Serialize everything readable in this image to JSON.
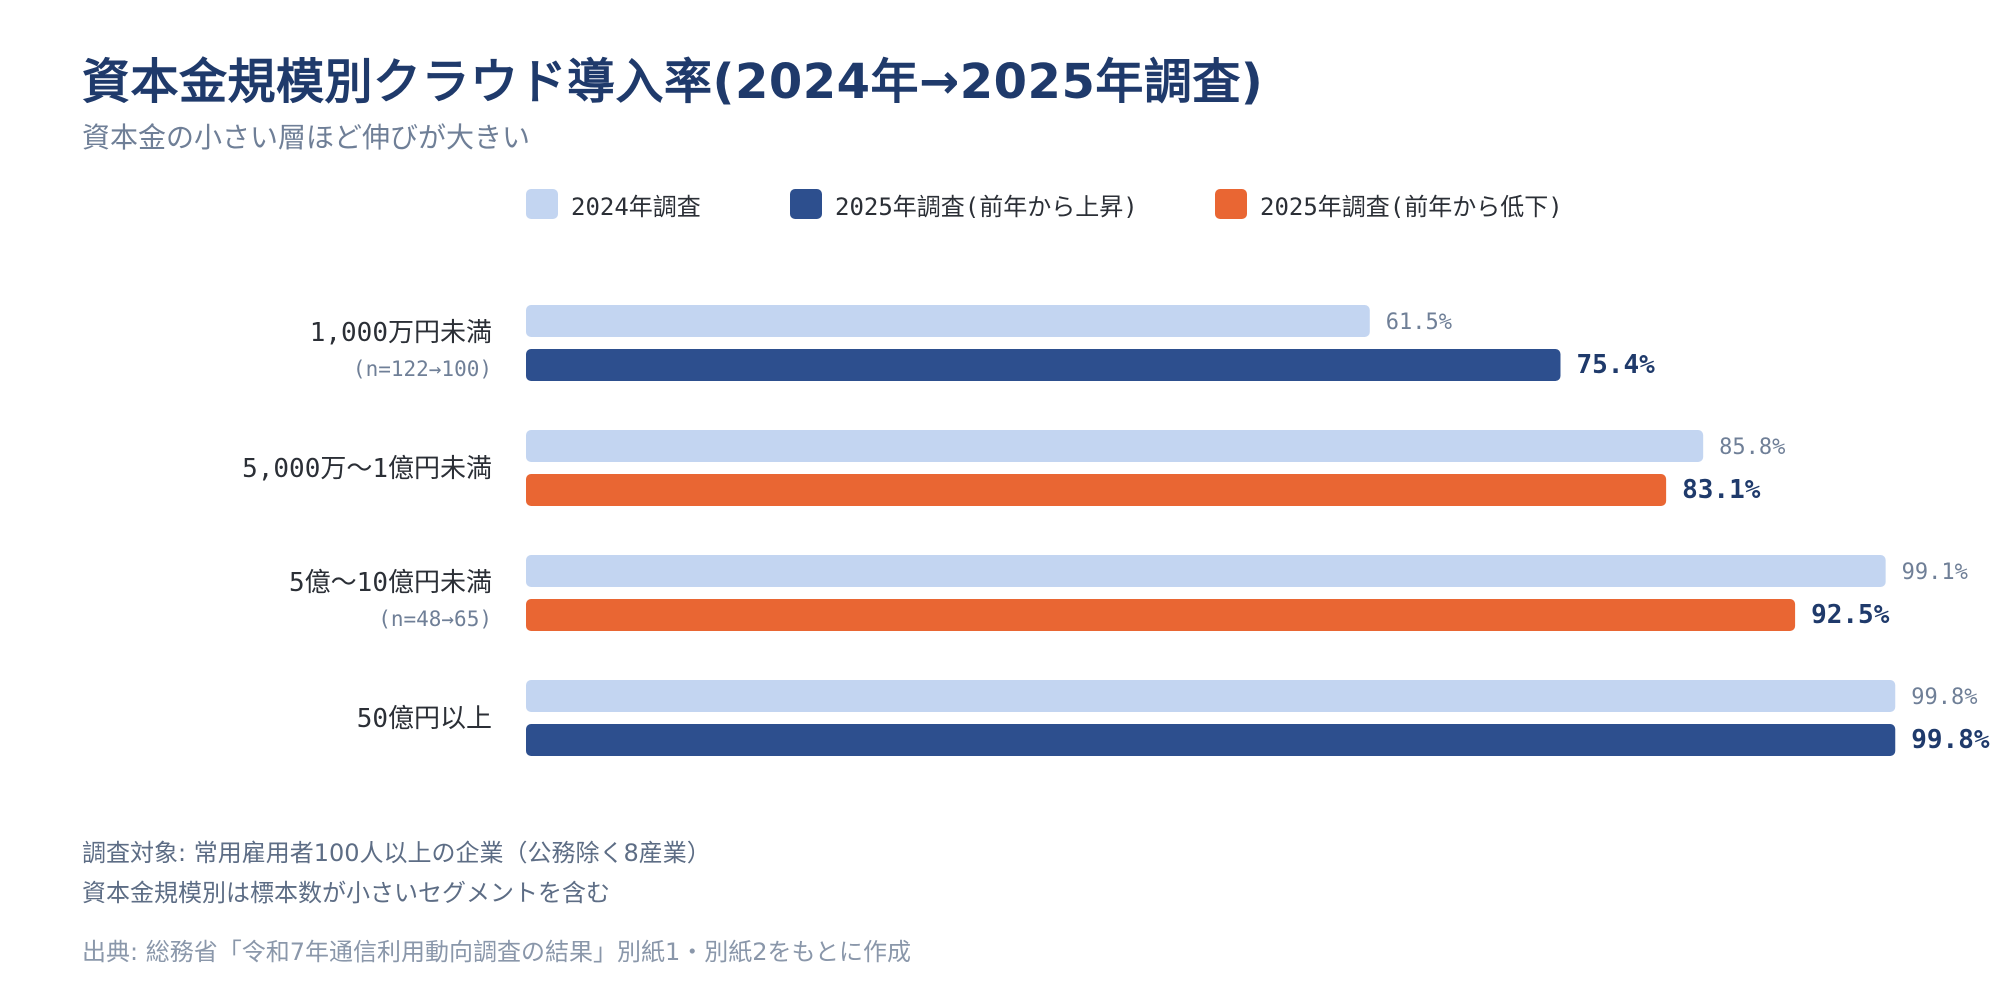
{
  "title": "資本金規模別クラウド導入率(2024年→2025年調査)",
  "subtitle": "資本金の小さい層ほど伸びが大きい",
  "legend": [
    {
      "label": "2024年調査",
      "color": "#c3d5f1"
    },
    {
      "label": "2025年調査(前年から上昇)",
      "color": "#2d4f8e"
    },
    {
      "label": "2025年調査(前年から低下)",
      "color": "#e96633"
    }
  ],
  "chart_data": {
    "type": "bar",
    "orientation": "horizontal",
    "title": "資本金規模別クラウド導入率(2024年→2025年調査)",
    "subtitle": "資本金の小さい層ほど伸びが大きい",
    "xlim": [
      0,
      100
    ],
    "grid": false,
    "legend_position": "top",
    "categories": [
      {
        "label": "1,000万円未満",
        "sublabel": "(n=122→100)"
      },
      {
        "label": "5,000万～1億円未満",
        "sublabel": ""
      },
      {
        "label": "5億～10億円未満",
        "sublabel": "(n=48→65)"
      },
      {
        "label": "50億円以上",
        "sublabel": ""
      }
    ],
    "series": [
      {
        "name": "2024年調査",
        "values": [
          61.5,
          85.8,
          99.1,
          99.8
        ],
        "labels": [
          "61.5%",
          "85.8%",
          "99.1%",
          "99.8%"
        ],
        "colors": [
          "#c3d5f1",
          "#c3d5f1",
          "#c3d5f1",
          "#c3d5f1"
        ]
      },
      {
        "name": "2025年調査",
        "values": [
          75.4,
          83.1,
          92.5,
          99.8
        ],
        "labels": [
          "75.4%",
          "83.1%",
          "92.5%",
          "99.8%"
        ],
        "colors": [
          "#2d4f8e",
          "#e96633",
          "#e96633",
          "#2d4f8e"
        ]
      }
    ]
  },
  "notes": [
    "調査対象: 常用雇用者100人以上の企業（公務除く8産業）",
    "資本金規模別は標本数が小さいセグメントを含む"
  ],
  "source": "出典: 総務省「令和7年通信利用動向調査の結果」別紙1・別紙2をもとに作成"
}
